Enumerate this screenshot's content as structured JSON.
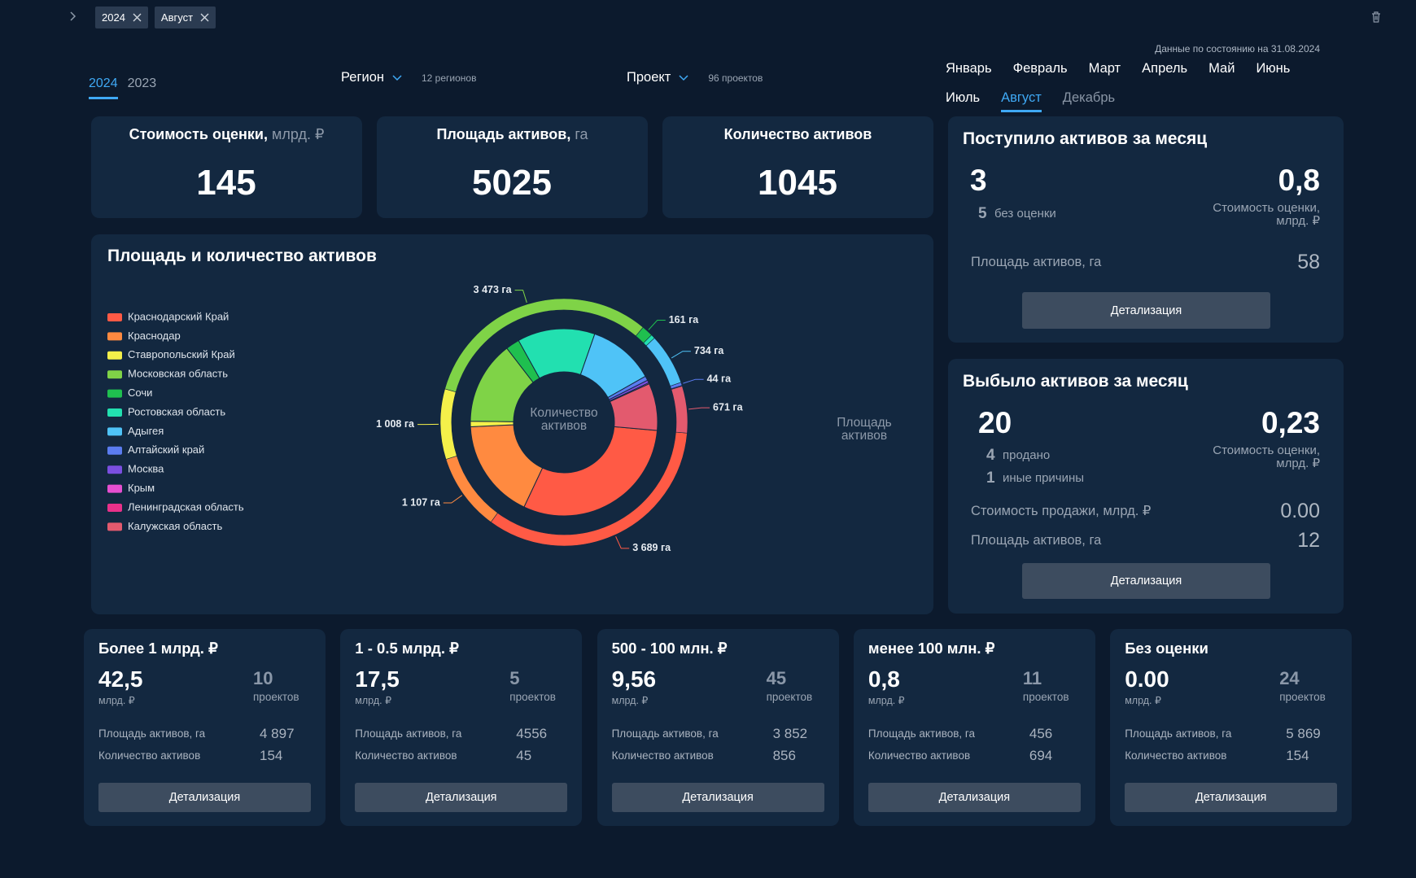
{
  "filters": {
    "chips": [
      "2024",
      "Август"
    ]
  },
  "status": "Данные по состоянию на 31.08.2024",
  "years": {
    "items": [
      "2024",
      "2023"
    ],
    "active": 0
  },
  "dropdowns": [
    {
      "label": "Регион",
      "note": "12 регионов"
    },
    {
      "label": "Проект",
      "note": "96 проектов"
    }
  ],
  "months": {
    "items": [
      "Январь",
      "Февраль",
      "Март",
      "Апрель",
      "Май",
      "Июнь",
      "Июль",
      "Август",
      "Декабрь"
    ],
    "active": 7
  },
  "kpis": [
    {
      "title": "Стоимость оценки,",
      "unit": "млрд. ₽",
      "value": "145"
    },
    {
      "title": "Площадь активов,",
      "unit": "га",
      "value": "5025"
    },
    {
      "title": "Количество активов",
      "value": "1045"
    }
  ],
  "chart_data": {
    "type": "donut",
    "title": "Площадь и количество активов",
    "categories": [
      "Краснодарский Край",
      "Краснодар",
      "Ставропольский Край",
      "Московская область",
      "Сочи",
      "Ростовская область",
      "Адыгея",
      "Алтайский край",
      "Москва",
      "Крым",
      "Ленинградская область",
      "Калужская область"
    ],
    "colors": [
      "#ff5a45",
      "#ff8a40",
      "#f4f04a",
      "#7fd347",
      "#1fbf4f",
      "#22e0b0",
      "#4fc3f7",
      "#5b7cf0",
      "#7b4fe0",
      "#e64fd0",
      "#e8318a",
      "#e35a6e"
    ],
    "series": [
      {
        "name": "Площадь активов",
        "ring": "outer",
        "values": [
          3689,
          1107,
          1008,
          3473,
          161,
          60,
          734,
          44,
          10,
          0,
          0,
          671
        ],
        "value_labels": [
          "3 689 га",
          "1 107 га",
          "1 008 га",
          "3 473 га",
          "161 га",
          null,
          "734 га",
          "44 га",
          null,
          null,
          null,
          "671 га"
        ]
      },
      {
        "name": "Количество активов",
        "ring": "inner",
        "values": [
          320,
          180,
          10,
          150,
          25,
          140,
          120,
          8,
          5,
          2,
          0,
          85
        ]
      }
    ],
    "legend": "left"
  },
  "incoming": {
    "title": "Поступило активов за месяц",
    "count": "3",
    "sub": [
      {
        "count": "5",
        "label": "без оценки"
      }
    ],
    "value": "0,8",
    "value_label": [
      "Стоимость оценки,",
      "млрд. ₽"
    ],
    "rows": [
      {
        "label": "Площадь активов, га",
        "value": "58"
      }
    ],
    "button": "Детализация"
  },
  "outgoing": {
    "title": "Выбыло активов за месяц",
    "count": "20",
    "sub": [
      {
        "count": "4",
        "label": "продано"
      },
      {
        "count": "1",
        "label": "иные причины"
      }
    ],
    "value": "0,23",
    "value_label": [
      "Стоимость оценки,",
      "млрд. ₽"
    ],
    "rows": [
      {
        "label": "Стоимость продажи, млрд. ₽",
        "value": "0.00"
      },
      {
        "label": "Площадь активов, га",
        "value": "12"
      }
    ],
    "button": "Детализация"
  },
  "segments": [
    {
      "title": "Более 1 млрд. ₽",
      "value": "42,5",
      "unit": "млрд. ₽",
      "projects": "10",
      "projects_label": "проектов",
      "rows": [
        {
          "label": "Площадь активов, га",
          "value": "4 897"
        },
        {
          "label": "Количество активов",
          "value": "154"
        }
      ],
      "button": "Детализация"
    },
    {
      "title": "1 - 0.5 млрд. ₽",
      "value": "17,5",
      "unit": "млрд. ₽",
      "projects": "5",
      "projects_label": "проектов",
      "rows": [
        {
          "label": "Площадь активов, га",
          "value": "4556"
        },
        {
          "label": "Количество активов",
          "value": "45"
        }
      ],
      "button": "Детализация"
    },
    {
      "title": "500 - 100 млн. ₽",
      "value": "9,56",
      "unit": "млрд. ₽",
      "projects": "45",
      "projects_label": "проектов",
      "rows": [
        {
          "label": "Площадь активов, га",
          "value": "3 852"
        },
        {
          "label": "Количество активов",
          "value": "856"
        }
      ],
      "button": "Детализация"
    },
    {
      "title": "менее 100 млн. ₽",
      "value": "0,8",
      "unit": "млрд. ₽",
      "projects": "11",
      "projects_label": "проектов",
      "rows": [
        {
          "label": "Площадь активов, га",
          "value": "456"
        },
        {
          "label": "Количество активов",
          "value": "694"
        }
      ],
      "button": "Детализация"
    },
    {
      "title": "Без оценки",
      "value": "0.00",
      "unit": "млрд. ₽",
      "projects": "24",
      "projects_label": "проектов",
      "rows": [
        {
          "label": "Площадь активов, га",
          "value": "5 869"
        },
        {
          "label": "Количество активов",
          "value": "154"
        }
      ],
      "button": "Детализация"
    }
  ]
}
